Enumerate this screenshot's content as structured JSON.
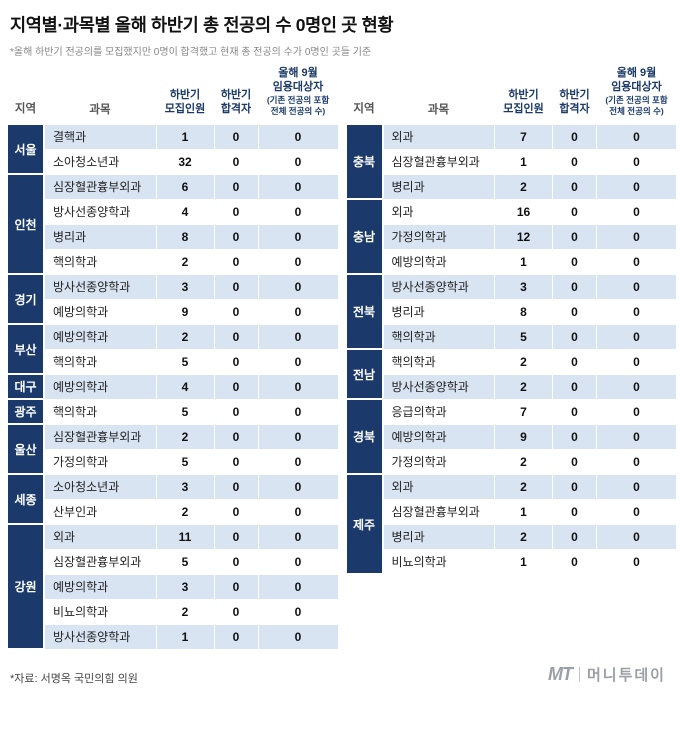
{
  "title": "지역별·과목별 올해 하반기 총 전공의 수 0명인 곳 현황",
  "subtitle": "*올해 하반기 전공의를 모집했지만 0명이 합격했고 현재 총 전공의 수가 0명인 곳들 기준",
  "source_note": "*자료: 서명옥 국민의힘 의원",
  "logo": {
    "mark": "MT",
    "name": "머니투데이"
  },
  "colors": {
    "navy": "#1b3a6b",
    "stripe": "#d9e4f2",
    "title_text": "#111111"
  },
  "chart_data": {
    "type": "table",
    "title": "지역별·과목별 올해 하반기 총 전공의 수 0명인 곳 현황",
    "columns": [
      {
        "id": "region",
        "label": "지역",
        "lines": [
          "지역"
        ],
        "style": "plain"
      },
      {
        "id": "subject",
        "label": "과목",
        "lines": [
          "과목"
        ],
        "style": "plain"
      },
      {
        "id": "recruit",
        "label": "하반기 모집인원",
        "lines": [
          "하반기",
          "모집인원"
        ],
        "style": "navy"
      },
      {
        "id": "pass",
        "label": "하반기 합격자",
        "lines": [
          "하반기",
          "합격자"
        ],
        "style": "navy"
      },
      {
        "id": "sept",
        "label": "올해 9월 임용대상자 (기존 전공의 포함 전체 전공의 수)",
        "lines": [
          "올해 9월",
          "임용대상자"
        ],
        "sub_lines": [
          "(기존 전공의 포함",
          "전체 전공의 수)"
        ],
        "style": "navy"
      }
    ],
    "tables": {
      "left": [
        {
          "region": "서울",
          "rows": [
            [
              "결핵과",
              1,
              0,
              0
            ],
            [
              "소아청소년과",
              32,
              0,
              0
            ]
          ]
        },
        {
          "region": "인천",
          "rows": [
            [
              "심장혈관흉부외과",
              6,
              0,
              0
            ],
            [
              "방사선종양학과",
              4,
              0,
              0
            ],
            [
              "병리과",
              8,
              0,
              0
            ],
            [
              "핵의학과",
              2,
              0,
              0
            ]
          ]
        },
        {
          "region": "경기",
          "rows": [
            [
              "방사선종양학과",
              3,
              0,
              0
            ],
            [
              "예방의학과",
              9,
              0,
              0
            ]
          ]
        },
        {
          "region": "부산",
          "rows": [
            [
              "예방의학과",
              2,
              0,
              0
            ],
            [
              "핵의학과",
              5,
              0,
              0
            ]
          ]
        },
        {
          "region": "대구",
          "rows": [
            [
              "예방의학과",
              4,
              0,
              0
            ]
          ]
        },
        {
          "region": "광주",
          "rows": [
            [
              "핵의학과",
              5,
              0,
              0
            ]
          ]
        },
        {
          "region": "울산",
          "rows": [
            [
              "심장혈관흉부외과",
              2,
              0,
              0
            ],
            [
              "가정의학과",
              5,
              0,
              0
            ]
          ]
        },
        {
          "region": "세종",
          "rows": [
            [
              "소아청소년과",
              3,
              0,
              0
            ],
            [
              "산부인과",
              2,
              0,
              0
            ]
          ]
        },
        {
          "region": "강원",
          "rows": [
            [
              "외과",
              11,
              0,
              0
            ],
            [
              "심장혈관흉부외과",
              5,
              0,
              0
            ],
            [
              "예방의학과",
              3,
              0,
              0
            ],
            [
              "비뇨의학과",
              2,
              0,
              0
            ],
            [
              "방사선종양학과",
              1,
              0,
              0
            ]
          ]
        }
      ],
      "right": [
        {
          "region": "충북",
          "rows": [
            [
              "외과",
              7,
              0,
              0
            ],
            [
              "심장혈관흉부외과",
              1,
              0,
              0
            ],
            [
              "병리과",
              2,
              0,
              0
            ]
          ]
        },
        {
          "region": "충남",
          "rows": [
            [
              "외과",
              16,
              0,
              0
            ],
            [
              "가정의학과",
              12,
              0,
              0
            ],
            [
              "예방의학과",
              1,
              0,
              0
            ]
          ]
        },
        {
          "region": "전북",
          "rows": [
            [
              "방사선종양학과",
              3,
              0,
              0
            ],
            [
              "병리과",
              8,
              0,
              0
            ],
            [
              "핵의학과",
              5,
              0,
              0
            ]
          ]
        },
        {
          "region": "전남",
          "rows": [
            [
              "핵의학과",
              2,
              0,
              0
            ],
            [
              "방사선종양학과",
              2,
              0,
              0
            ]
          ]
        },
        {
          "region": "경북",
          "rows": [
            [
              "응급의학과",
              7,
              0,
              0
            ],
            [
              "예방의학과",
              9,
              0,
              0
            ],
            [
              "가정의학과",
              2,
              0,
              0
            ]
          ]
        },
        {
          "region": "제주",
          "rows": [
            [
              "외과",
              2,
              0,
              0
            ],
            [
              "심장혈관흉부외과",
              1,
              0,
              0
            ],
            [
              "병리과",
              2,
              0,
              0
            ],
            [
              "비뇨의학과",
              1,
              0,
              0
            ]
          ]
        }
      ]
    }
  }
}
